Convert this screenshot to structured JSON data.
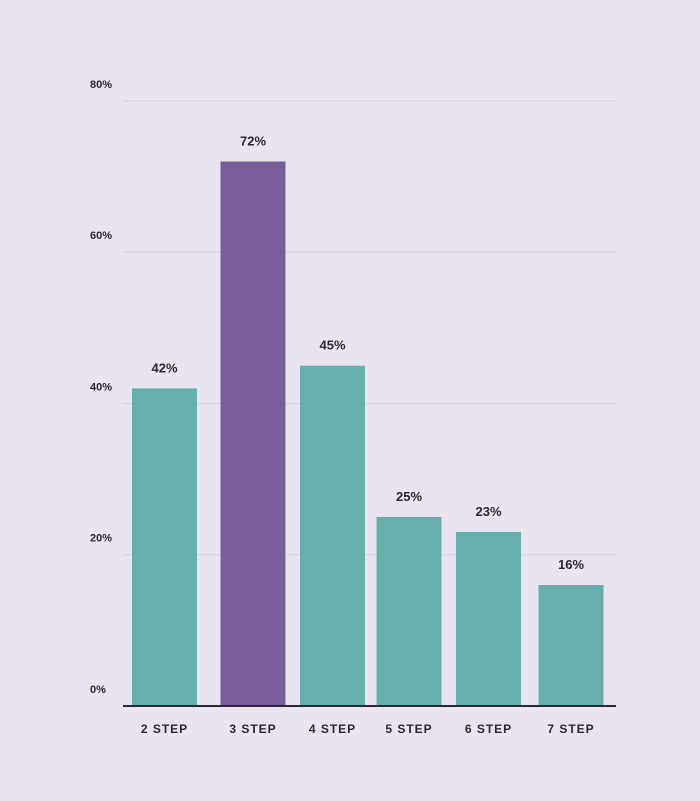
{
  "chart_data": {
    "type": "bar",
    "categories": [
      "2 STEP",
      "3 STEP",
      "4 STEP",
      "5 STEP",
      "6 STEP",
      "7 STEP"
    ],
    "values": [
      42,
      72,
      45,
      25,
      23,
      16
    ],
    "data_labels": [
      "42%",
      "72%",
      "45%",
      "25%",
      "23%",
      "16%"
    ],
    "ylim": [
      0,
      80
    ],
    "y_ticks": [
      0,
      20,
      40,
      60,
      80
    ],
    "y_tick_labels": [
      "0%",
      "20%",
      "40%",
      "60%",
      "80%"
    ],
    "highlight_index": 1,
    "grid": true,
    "legend": "none",
    "colors": {
      "bar": "#67afac",
      "highlight": "#775e9b",
      "text": "#2b2734",
      "grid": "#d7d0e1",
      "background": "#e9e4f0"
    }
  }
}
